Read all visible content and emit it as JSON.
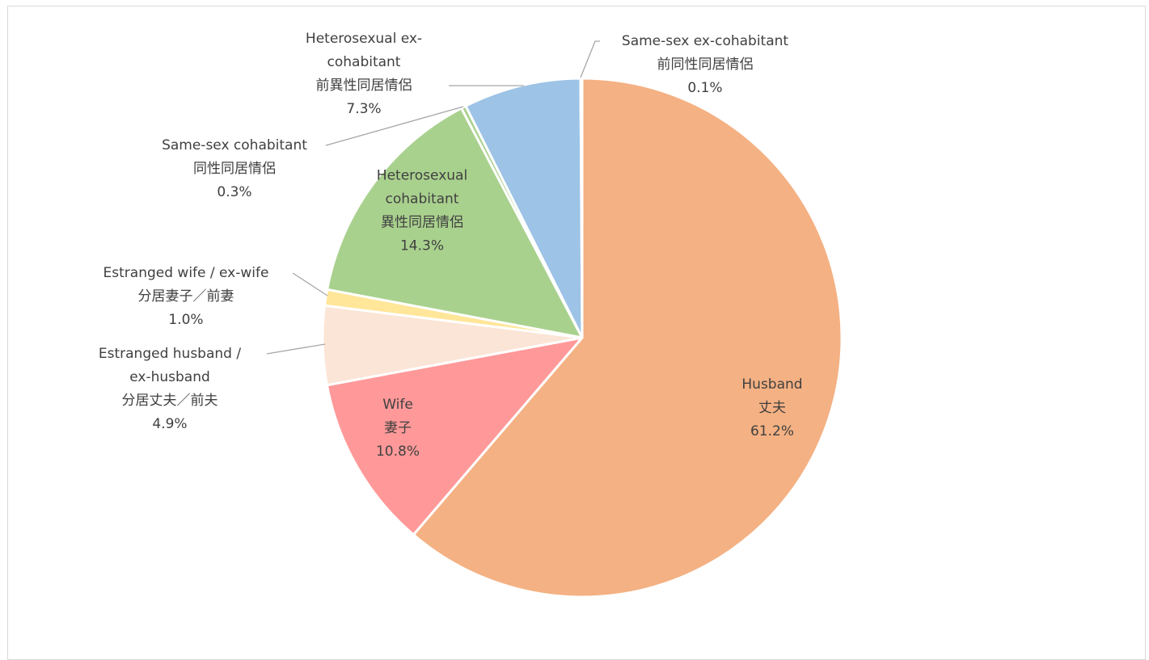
{
  "chart_data": {
    "type": "pie",
    "title": "",
    "colors": [
      "#F4B183",
      "#FF9999",
      "#FBE5D6",
      "#FFE699",
      "#A9D18E",
      "#A9D18E",
      "#9DC3E6",
      "#9DC3E6"
    ],
    "slices": [
      {
        "label_en": "Husband",
        "label_jp": "丈夫",
        "value": 61.2,
        "value_label": "61.2%",
        "color": "#F4B183"
      },
      {
        "label_en": "Wife",
        "label_jp": "妻子",
        "value": 10.8,
        "value_label": "10.8%",
        "color": "#FF9999"
      },
      {
        "label_en": "Estranged husband / ex-husband",
        "label_jp": "分居丈夫／前夫",
        "value": 4.9,
        "value_label": "4.9%",
        "color": "#FBE5D6"
      },
      {
        "label_en": "Estranged wife / ex-wife",
        "label_jp": "分居妻子／前妻",
        "value": 1.0,
        "value_label": "1.0%",
        "color": "#FFE699"
      },
      {
        "label_en": "Heterosexual cohabitant",
        "label_jp": "異性同居情侶",
        "value": 14.3,
        "value_label": "14.3%",
        "color": "#A9D18E"
      },
      {
        "label_en": "Same-sex cohabitant",
        "label_jp": "同性同居情侶",
        "value": 0.3,
        "value_label": "0.3%",
        "color": "#A9D18E"
      },
      {
        "label_en": "Heterosexual ex-cohabitant",
        "label_jp": "前異性同居情侶",
        "value": 7.3,
        "value_label": "7.3%",
        "color": "#9DC3E6"
      },
      {
        "label_en": "Same-sex ex-cohabitant",
        "label_jp": "前同性同居情侶",
        "value": 0.1,
        "value_label": "0.1%",
        "color": "#9DC3E6"
      }
    ]
  }
}
